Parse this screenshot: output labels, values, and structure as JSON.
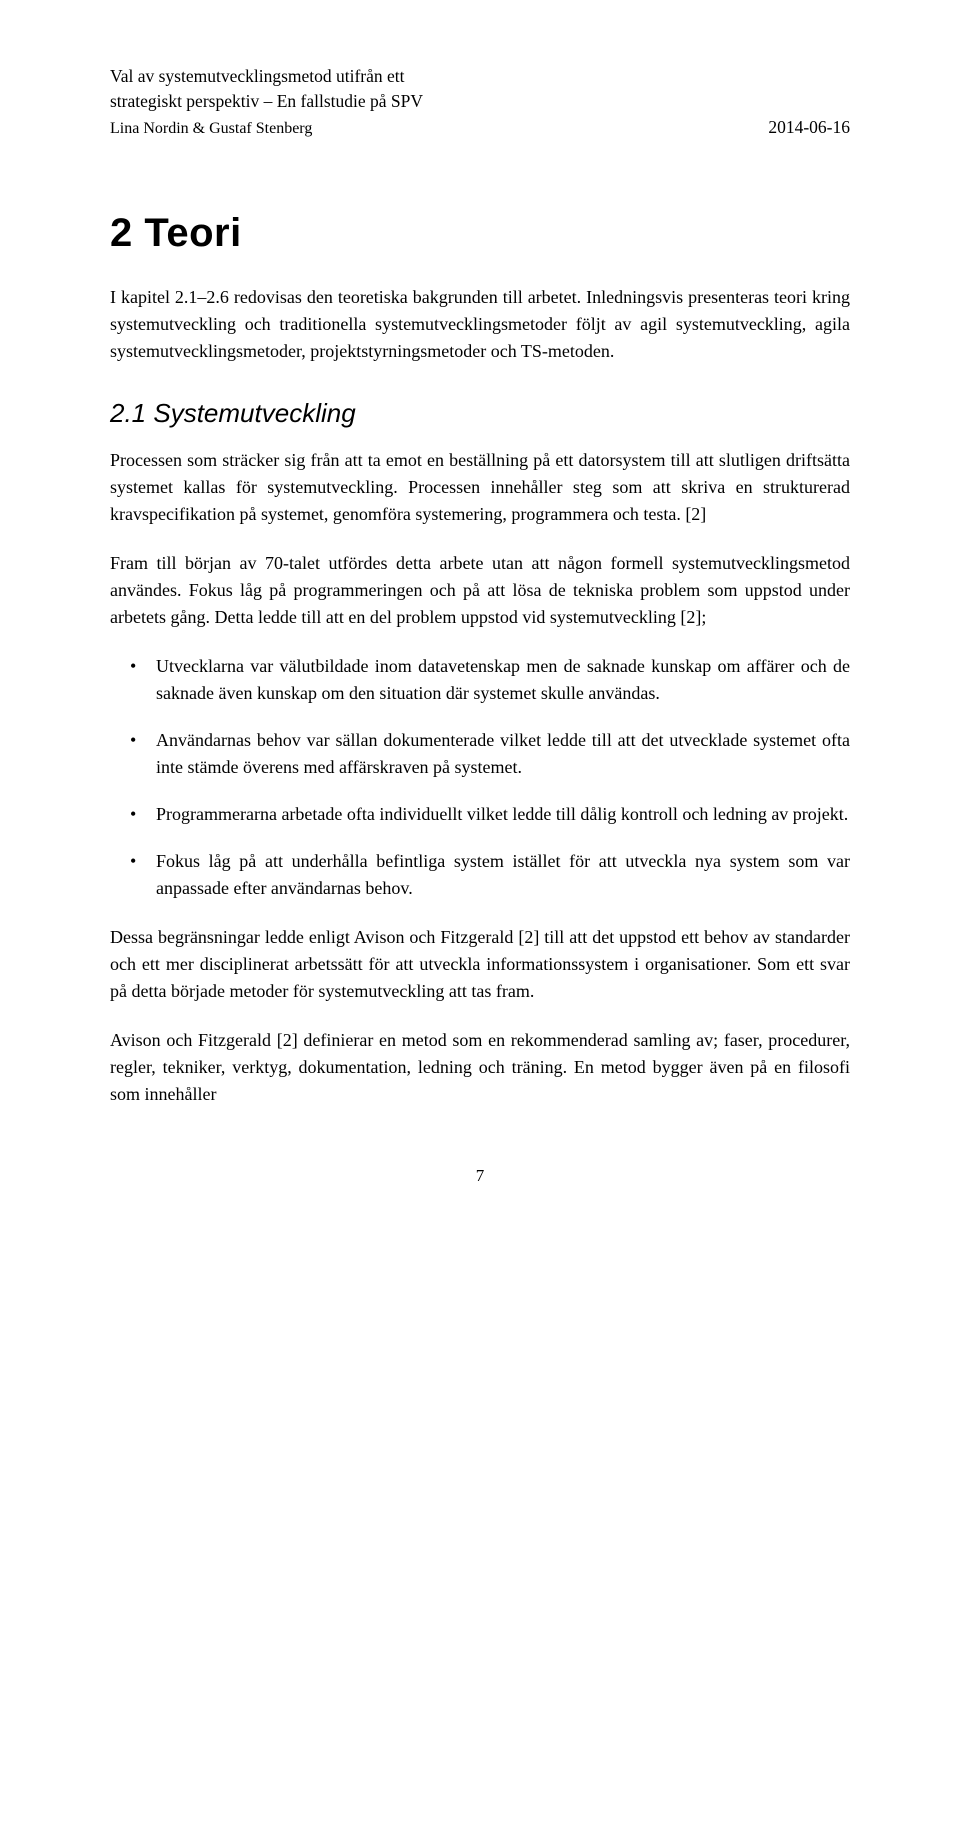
{
  "header": {
    "title_line1": "Val av systemutvecklingsmetod utifrån ett",
    "title_line2": "strategiskt perspektiv – En fallstudie på SPV",
    "authors": "Lina Nordin & Gustaf Stenberg",
    "date": "2014-06-16"
  },
  "chapter": {
    "number_title": "2   Teori",
    "intro": "I kapitel 2.1–2.6 redovisas den teoretiska bakgrunden till arbetet. Inledningsvis presenteras teori kring systemutveckling och traditionella systemutvecklingsmetoder följt av agil systemutveckling, agila systemutvecklingsmetoder, projektstyrningsmetoder och TS-metoden."
  },
  "section": {
    "heading": "2.1    Systemutveckling",
    "p1": "Processen som sträcker sig från att ta emot en beställning på ett datorsystem till att slutligen driftsätta systemet kallas för systemutveckling. Processen innehåller steg som att skriva en strukturerad kravspecifikation på systemet, genomföra systemering, programmera och testa. [2]",
    "p2": "Fram till början av 70-talet utfördes detta arbete utan att någon formell systemutvecklingsmetod användes. Fokus låg på programmeringen och på att lösa de tekniska problem som uppstod under arbetets gång. Detta ledde till att en del problem uppstod vid systemutveckling [2];",
    "bullets": [
      "Utvecklarna var välutbildade inom datavetenskap men de saknade kunskap om affärer och de saknade även kunskap om den situation där systemet skulle användas.",
      "Användarnas behov var sällan dokumenterade vilket ledde till att det utvecklade systemet ofta inte stämde överens med affärskraven på systemet.",
      "Programmerarna arbetade ofta individuellt vilket ledde till dålig kontroll och ledning av projekt.",
      "Fokus låg på att underhålla befintliga system istället för att utveckla nya system som var anpassade efter användarnas behov."
    ],
    "p3": "Dessa begränsningar ledde enligt Avison och Fitzgerald [2] till att det uppstod ett behov av standarder och ett mer disciplinerat arbetssätt för att utveckla informationssystem i organisationer. Som ett svar på detta började metoder för systemutveckling att tas fram.",
    "p4": "Avison och Fitzgerald [2] definierar en metod som en rekommenderad samling av; faser, procedurer, regler, tekniker, verktyg, dokumentation, ledning och träning. En metod bygger även på en filosofi som innehåller"
  },
  "page_number": "7",
  "colors": {
    "text": "#000000",
    "background": "#ffffff"
  },
  "typography": {
    "body_family": "Palatino Linotype, Book Antiqua, Palatino, Georgia, serif",
    "heading_family": "Arial, Helvetica, sans-serif",
    "body_size_pt": 12,
    "h1_size_pt": 28,
    "h2_size_pt": 18,
    "h2_style": "italic"
  }
}
